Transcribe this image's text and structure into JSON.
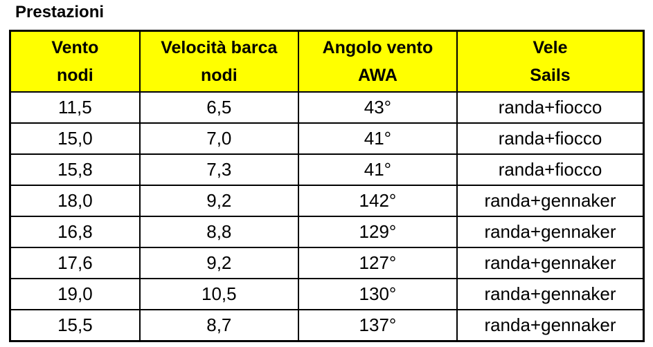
{
  "title": "Prestazioni",
  "table": {
    "header": [
      [
        "Vento",
        "nodi"
      ],
      [
        "Velocità barca",
        "nodi"
      ],
      [
        "Angolo vento",
        "AWA"
      ],
      [
        "Vele",
        "Sails"
      ]
    ],
    "rows": [
      [
        "11,5",
        "6,5",
        "43°",
        "randa+fiocco"
      ],
      [
        "15,0",
        "7,0",
        "41°",
        "randa+fiocco"
      ],
      [
        "15,8",
        "7,3",
        "41°",
        "randa+fiocco"
      ],
      [
        "18,0",
        "9,2",
        "142°",
        "randa+gennaker"
      ],
      [
        "16,8",
        "8,8",
        "129°",
        "randa+gennaker"
      ],
      [
        "17,6",
        "9,2",
        "127°",
        "randa+gennaker"
      ],
      [
        "19,0",
        "10,5",
        "130°",
        "randa+gennaker"
      ],
      [
        "15,5",
        "8,7",
        "137°",
        "randa+gennaker"
      ]
    ]
  }
}
